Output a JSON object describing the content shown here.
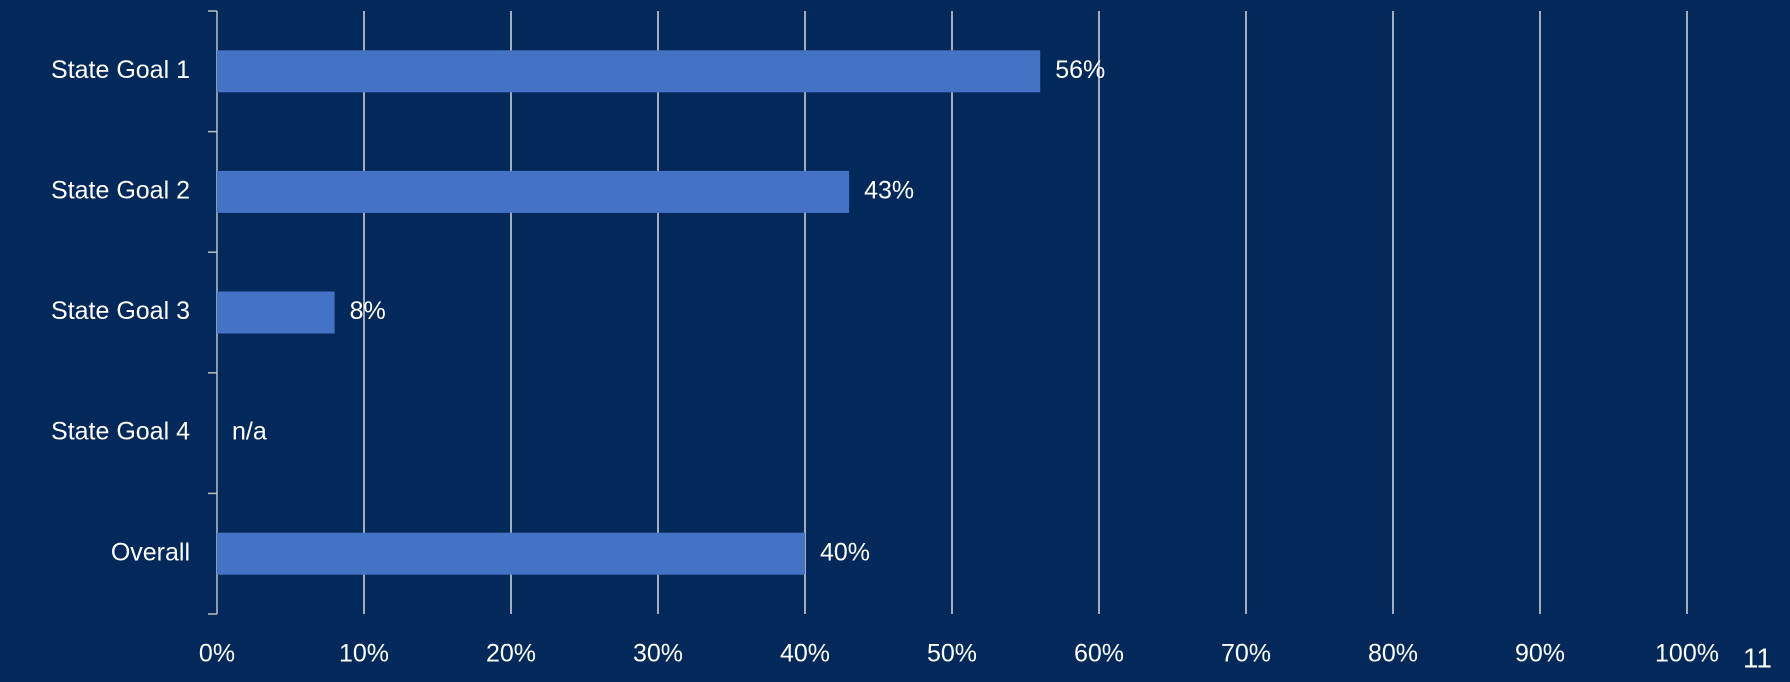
{
  "chart_data": {
    "type": "bar",
    "orientation": "horizontal",
    "categories": [
      "State Goal 1",
      "State Goal 2",
      "State Goal 3",
      "State Goal 4",
      "Overall"
    ],
    "values": [
      56,
      43,
      8,
      null,
      40
    ],
    "value_labels": [
      "56%",
      "43%",
      "8%",
      "n/a",
      "40%"
    ],
    "color": "#4472c4",
    "xlim": [
      0,
      100
    ],
    "xticks": [
      {
        "value": 0,
        "label": "0%"
      },
      {
        "value": 10,
        "label": "10%"
      },
      {
        "value": 20,
        "label": "20%"
      },
      {
        "value": 30,
        "label": "30%"
      },
      {
        "value": 40,
        "label": "40%"
      },
      {
        "value": 50,
        "label": "50%"
      },
      {
        "value": 60,
        "label": "60%"
      },
      {
        "value": 70,
        "label": "70%"
      },
      {
        "value": 80,
        "label": "80%"
      },
      {
        "value": 90,
        "label": "90%"
      },
      {
        "value": 100,
        "label": "100%"
      }
    ],
    "grid": true
  },
  "page_number": "11"
}
